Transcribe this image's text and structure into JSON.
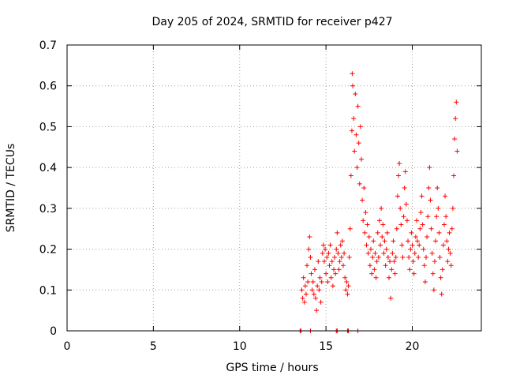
{
  "chart_data": {
    "type": "scatter",
    "title": "Day 205 of 2024, SRMTID for receiver p427",
    "xlabel": "GPS time / hours",
    "ylabel": "SRMTID / TECUs",
    "xlim": [
      0,
      24
    ],
    "ylim": [
      0,
      0.7
    ],
    "xticks": [
      0,
      5,
      10,
      15,
      20
    ],
    "yticks": [
      0,
      0.1,
      0.2,
      0.3,
      0.4,
      0.5,
      0.6,
      0.7
    ],
    "grid": true,
    "marker": "+",
    "color": "#ff0000",
    "series": [
      {
        "name": "SRMTID",
        "points": [
          [
            13.5,
            0.0
          ],
          [
            13.55,
            0.0
          ],
          [
            14.1,
            0.0
          ],
          [
            15.6,
            0.0
          ],
          [
            15.65,
            0.0
          ],
          [
            16.25,
            0.0
          ],
          [
            16.3,
            0.0
          ],
          [
            16.85,
            0.0
          ],
          [
            13.6,
            0.1
          ],
          [
            13.65,
            0.08
          ],
          [
            13.7,
            0.13
          ],
          [
            13.75,
            0.07
          ],
          [
            13.8,
            0.11
          ],
          [
            13.85,
            0.09
          ],
          [
            13.9,
            0.16
          ],
          [
            13.95,
            0.12
          ],
          [
            14.0,
            0.2
          ],
          [
            14.05,
            0.23
          ],
          [
            14.1,
            0.18
          ],
          [
            14.15,
            0.14
          ],
          [
            14.2,
            0.1
          ],
          [
            14.25,
            0.12
          ],
          [
            14.3,
            0.09
          ],
          [
            14.35,
            0.15
          ],
          [
            14.4,
            0.08
          ],
          [
            14.45,
            0.05
          ],
          [
            14.5,
            0.11
          ],
          [
            14.55,
            0.17
          ],
          [
            14.6,
            0.1
          ],
          [
            14.65,
            0.13
          ],
          [
            14.7,
            0.07
          ],
          [
            14.75,
            0.12
          ],
          [
            14.8,
            0.19
          ],
          [
            14.85,
            0.21
          ],
          [
            14.9,
            0.17
          ],
          [
            14.95,
            0.2
          ],
          [
            15.0,
            0.14
          ],
          [
            15.05,
            0.18
          ],
          [
            15.1,
            0.12
          ],
          [
            15.15,
            0.19
          ],
          [
            15.2,
            0.16
          ],
          [
            15.25,
            0.21
          ],
          [
            15.3,
            0.13
          ],
          [
            15.35,
            0.17
          ],
          [
            15.4,
            0.11
          ],
          [
            15.45,
            0.15
          ],
          [
            15.5,
            0.18
          ],
          [
            15.55,
            0.14
          ],
          [
            15.6,
            0.2
          ],
          [
            15.65,
            0.24
          ],
          [
            15.7,
            0.19
          ],
          [
            15.75,
            0.15
          ],
          [
            15.8,
            0.17
          ],
          [
            15.85,
            0.21
          ],
          [
            15.9,
            0.18
          ],
          [
            15.95,
            0.22
          ],
          [
            16.0,
            0.16
          ],
          [
            16.05,
            0.19
          ],
          [
            16.1,
            0.13
          ],
          [
            16.15,
            0.1
          ],
          [
            16.2,
            0.12
          ],
          [
            16.25,
            0.09
          ],
          [
            16.3,
            0.11
          ],
          [
            16.35,
            0.18
          ],
          [
            16.4,
            0.25
          ],
          [
            16.45,
            0.38
          ],
          [
            16.5,
            0.49
          ],
          [
            16.52,
            0.63
          ],
          [
            16.55,
            0.6
          ],
          [
            16.6,
            0.52
          ],
          [
            16.65,
            0.44
          ],
          [
            16.7,
            0.58
          ],
          [
            16.75,
            0.48
          ],
          [
            16.8,
            0.4
          ],
          [
            16.85,
            0.55
          ],
          [
            16.9,
            0.46
          ],
          [
            16.95,
            0.36
          ],
          [
            17.0,
            0.5
          ],
          [
            17.05,
            0.42
          ],
          [
            17.1,
            0.32
          ],
          [
            17.15,
            0.27
          ],
          [
            17.2,
            0.35
          ],
          [
            17.25,
            0.24
          ],
          [
            17.3,
            0.29
          ],
          [
            17.35,
            0.21
          ],
          [
            17.4,
            0.26
          ],
          [
            17.45,
            0.19
          ],
          [
            17.5,
            0.23
          ],
          [
            17.55,
            0.16
          ],
          [
            17.6,
            0.2
          ],
          [
            17.65,
            0.14
          ],
          [
            17.7,
            0.18
          ],
          [
            17.75,
            0.22
          ],
          [
            17.8,
            0.15
          ],
          [
            17.85,
            0.19
          ],
          [
            17.9,
            0.13
          ],
          [
            17.95,
            0.17
          ],
          [
            18.0,
            0.24
          ],
          [
            18.05,
            0.18
          ],
          [
            18.1,
            0.27
          ],
          [
            18.15,
            0.21
          ],
          [
            18.2,
            0.3
          ],
          [
            18.25,
            0.23
          ],
          [
            18.3,
            0.26
          ],
          [
            18.35,
            0.19
          ],
          [
            18.4,
            0.22
          ],
          [
            18.45,
            0.16
          ],
          [
            18.5,
            0.2
          ],
          [
            18.55,
            0.24
          ],
          [
            18.6,
            0.18
          ],
          [
            18.65,
            0.13
          ],
          [
            18.7,
            0.17
          ],
          [
            18.75,
            0.08
          ],
          [
            18.8,
            0.15
          ],
          [
            18.85,
            0.19
          ],
          [
            18.9,
            0.22
          ],
          [
            18.95,
            0.17
          ],
          [
            19.0,
            0.14
          ],
          [
            19.05,
            0.18
          ],
          [
            19.1,
            0.25
          ],
          [
            19.15,
            0.33
          ],
          [
            19.2,
            0.38
          ],
          [
            19.25,
            0.41
          ],
          [
            19.3,
            0.3
          ],
          [
            19.35,
            0.26
          ],
          [
            19.4,
            0.21
          ],
          [
            19.45,
            0.18
          ],
          [
            19.5,
            0.28
          ],
          [
            19.55,
            0.35
          ],
          [
            19.6,
            0.39
          ],
          [
            19.65,
            0.31
          ],
          [
            19.7,
            0.27
          ],
          [
            19.75,
            0.22
          ],
          [
            19.8,
            0.18
          ],
          [
            19.85,
            0.15
          ],
          [
            19.9,
            0.2
          ],
          [
            19.95,
            0.24
          ],
          [
            20.0,
            0.21
          ],
          [
            20.05,
            0.17
          ],
          [
            20.1,
            0.14
          ],
          [
            20.15,
            0.19
          ],
          [
            20.2,
            0.23
          ],
          [
            20.25,
            0.27
          ],
          [
            20.3,
            0.22
          ],
          [
            20.35,
            0.18
          ],
          [
            20.4,
            0.21
          ],
          [
            20.45,
            0.25
          ],
          [
            20.5,
            0.29
          ],
          [
            20.55,
            0.33
          ],
          [
            20.6,
            0.26
          ],
          [
            20.65,
            0.2
          ],
          [
            20.7,
            0.16
          ],
          [
            20.75,
            0.12
          ],
          [
            20.8,
            0.18
          ],
          [
            20.85,
            0.23
          ],
          [
            20.9,
            0.28
          ],
          [
            20.95,
            0.35
          ],
          [
            21.0,
            0.4
          ],
          [
            21.05,
            0.32
          ],
          [
            21.1,
            0.25
          ],
          [
            21.15,
            0.19
          ],
          [
            21.2,
            0.14
          ],
          [
            21.25,
            0.1
          ],
          [
            21.3,
            0.17
          ],
          [
            21.35,
            0.22
          ],
          [
            21.4,
            0.28
          ],
          [
            21.45,
            0.35
          ],
          [
            21.5,
            0.3
          ],
          [
            21.55,
            0.24
          ],
          [
            21.6,
            0.18
          ],
          [
            21.65,
            0.13
          ],
          [
            21.7,
            0.09
          ],
          [
            21.75,
            0.15
          ],
          [
            21.8,
            0.21
          ],
          [
            21.85,
            0.26
          ],
          [
            21.9,
            0.33
          ],
          [
            21.95,
            0.28
          ],
          [
            22.0,
            0.22
          ],
          [
            22.05,
            0.17
          ],
          [
            22.1,
            0.2
          ],
          [
            22.15,
            0.24
          ],
          [
            22.2,
            0.19
          ],
          [
            22.25,
            0.16
          ],
          [
            22.3,
            0.25
          ],
          [
            22.35,
            0.3
          ],
          [
            22.4,
            0.38
          ],
          [
            22.45,
            0.47
          ],
          [
            22.5,
            0.52
          ],
          [
            22.55,
            0.56
          ],
          [
            22.6,
            0.44
          ]
        ]
      }
    ]
  }
}
